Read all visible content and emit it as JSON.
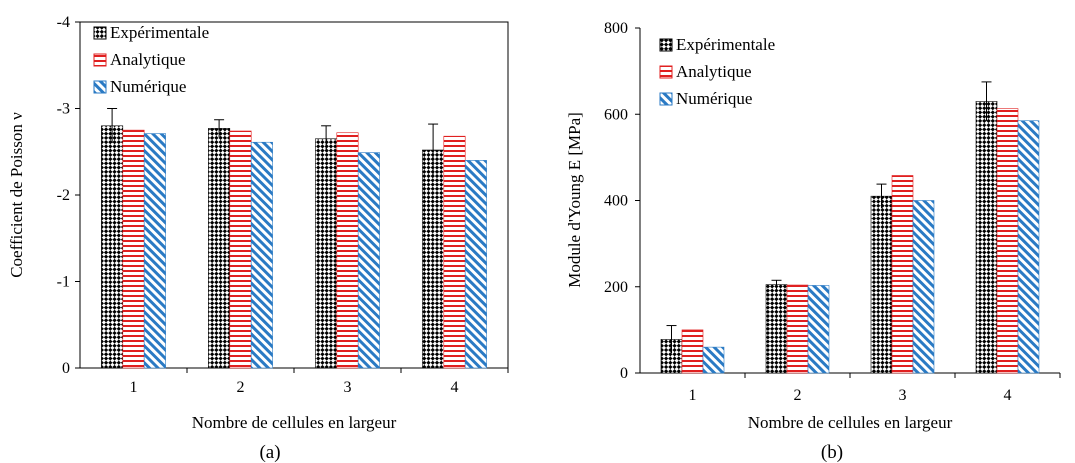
{
  "chart_data": [
    {
      "type": "bar",
      "panel_label": "(a)",
      "xlabel": "Nombre de cellules en largeur",
      "ylabel": "Coefficient de Poisson ν",
      "categories": [
        "1",
        "2",
        "3",
        "4"
      ],
      "ylim": [
        0,
        -4
      ],
      "yticks": [
        0,
        -1,
        -2,
        -3,
        -4
      ],
      "inverted_y": true,
      "grid": false,
      "legend_position": "top-left",
      "series": [
        {
          "name": "Expérimentale",
          "values": [
            -2.8,
            -2.77,
            -2.65,
            -2.52
          ],
          "errors": [
            0.2,
            0.1,
            0.15,
            0.3
          ],
          "pattern": "checker",
          "color": "#000000"
        },
        {
          "name": "Analytique",
          "values": [
            -2.75,
            -2.74,
            -2.72,
            -2.68
          ],
          "pattern": "hstripe",
          "color": "#e02020"
        },
        {
          "name": "Numérique",
          "values": [
            -2.71,
            -2.61,
            -2.49,
            -2.4
          ],
          "pattern": "diagonal",
          "color": "#2a7ac4"
        }
      ]
    },
    {
      "type": "bar",
      "panel_label": "(b)",
      "xlabel": "Nombre de cellules en largeur",
      "ylabel": "Module d'Young E [MPa]",
      "categories": [
        "1",
        "2",
        "3",
        "4"
      ],
      "ylim": [
        0,
        800
      ],
      "yticks": [
        0,
        200,
        400,
        600,
        800
      ],
      "inverted_y": false,
      "grid": false,
      "legend_position": "top-left",
      "series": [
        {
          "name": "Expérimentale",
          "values": [
            78,
            205,
            410,
            630
          ],
          "errors": [
            32,
            10,
            28,
            45
          ],
          "pattern": "checker",
          "color": "#000000"
        },
        {
          "name": "Analytique",
          "values": [
            100,
            204,
            458,
            613
          ],
          "pattern": "hstripe",
          "color": "#e02020"
        },
        {
          "name": "Numérique",
          "values": [
            60,
            203,
            400,
            585
          ],
          "pattern": "diagonal",
          "color": "#2a7ac4"
        }
      ]
    }
  ]
}
